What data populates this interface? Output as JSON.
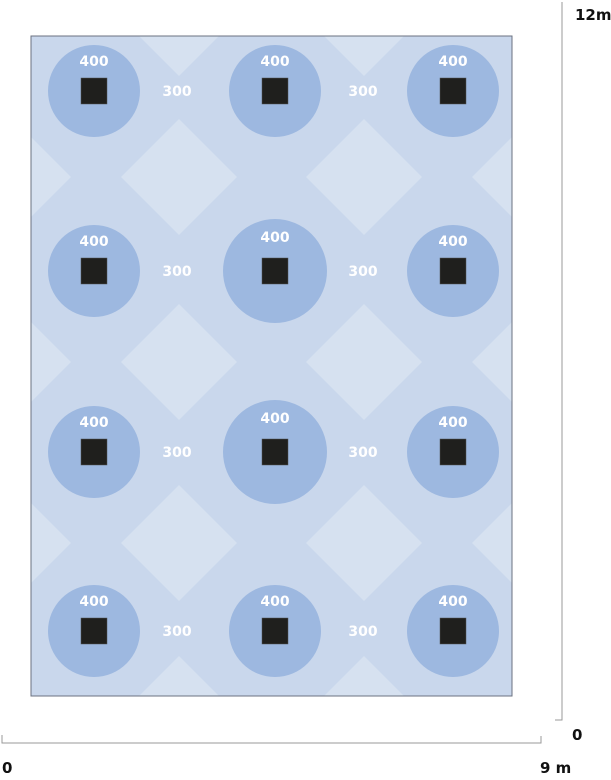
{
  "colors": {
    "background_zone": "#c9d7ec",
    "high_zone": "#9db8e0",
    "low_zone": "#d6e1f0",
    "luminaire": "#1f1f1d",
    "border": "#6b7280",
    "contour_label": "#ffffff"
  },
  "axes": {
    "y_max_label": "12m",
    "y_min_label": "0",
    "x_min_label": "0",
    "x_max_label": "9 m"
  },
  "luminaire_grid": {
    "columns": 3,
    "rows": 4,
    "icon": "square-luminaire-icon"
  },
  "contour_labels": {
    "high": "400",
    "mid": "300"
  }
}
